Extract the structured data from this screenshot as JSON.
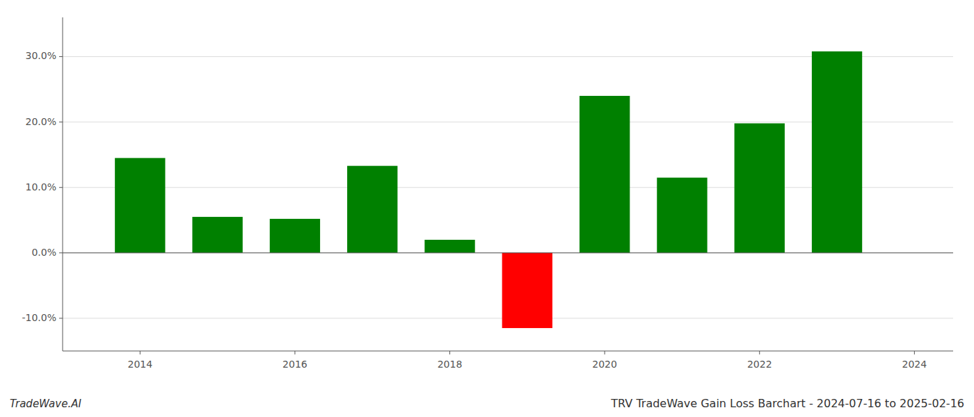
{
  "chart_data": {
    "type": "bar",
    "title": "TRV TradeWave Gain Loss Barchart - 2024-07-16 to 2025-02-16",
    "annotations": [
      "TradeWave.AI"
    ],
    "x": [
      2014,
      2015,
      2016,
      2017,
      2018,
      2019,
      2020,
      2021,
      2022,
      2023
    ],
    "values": [
      0.145,
      0.055,
      0.052,
      0.133,
      0.02,
      -0.115,
      0.24,
      0.115,
      0.198,
      0.308
    ],
    "colors": [
      "#008000",
      "#008000",
      "#008000",
      "#008000",
      "#008000",
      "#ff0000",
      "#008000",
      "#008000",
      "#008000",
      "#008000"
    ],
    "xlim": [
      2013.0,
      2024.5
    ],
    "xticks": [
      2014,
      2016,
      2018,
      2020,
      2022,
      2024
    ],
    "ylim": [
      -0.15,
      0.36
    ],
    "yticks": [
      {
        "value": -0.1,
        "label": "-10.0%"
      },
      {
        "value": 0.0,
        "label": "0.0%"
      },
      {
        "value": 0.1,
        "label": "10.0%"
      },
      {
        "value": 0.2,
        "label": "20.0%"
      },
      {
        "value": 0.3,
        "label": "30.0%"
      }
    ],
    "grid": true
  }
}
